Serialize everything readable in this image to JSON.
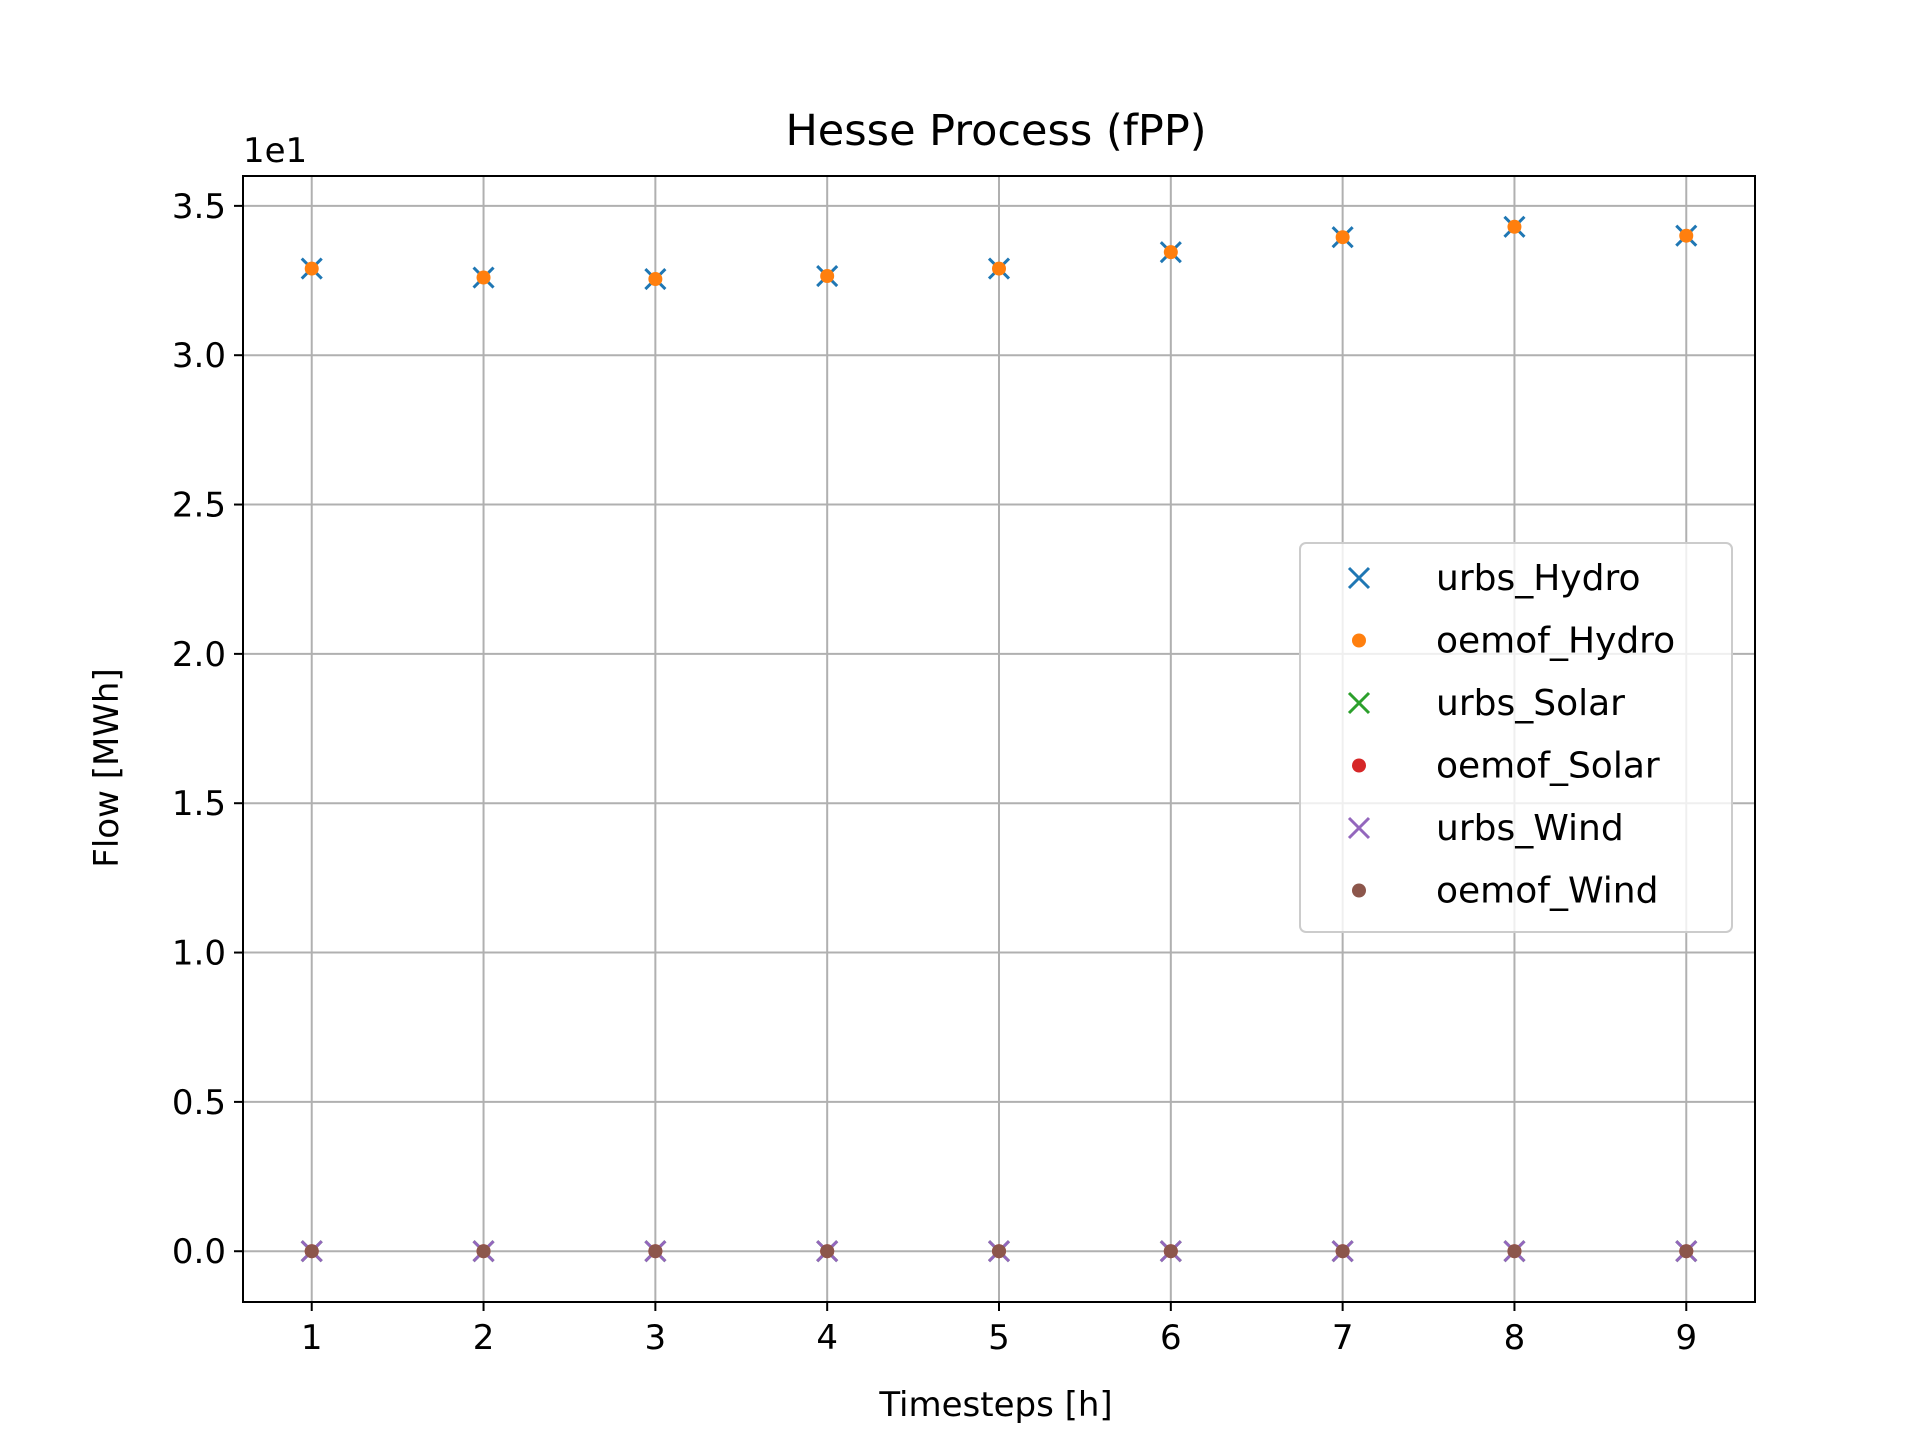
{
  "chart_data": {
    "type": "scatter",
    "title": "Hesse Process (fPP)",
    "xlabel": "Timesteps [h]",
    "ylabel": "Flow [MWh]",
    "y_offset_label": "1e1",
    "xlim": [
      0.6,
      9.4
    ],
    "ylim": [
      -0.17,
      3.6
    ],
    "x_ticks": [
      1,
      2,
      3,
      4,
      5,
      6,
      7,
      8,
      9
    ],
    "y_ticks": [
      0.0,
      0.5,
      1.0,
      1.5,
      2.0,
      2.5,
      3.0,
      3.5
    ],
    "y_tick_labels": [
      "0.0",
      "0.5",
      "1.0",
      "1.5",
      "2.0",
      "2.5",
      "3.0",
      "3.5"
    ],
    "grid": true,
    "legend_position": "center-right",
    "x": [
      1,
      2,
      3,
      4,
      5,
      6,
      7,
      8,
      9
    ],
    "series": [
      {
        "name": "urbs_Hydro",
        "marker": "x",
        "color": "#1f77b4",
        "values": [
          3.29,
          3.26,
          3.255,
          3.265,
          3.29,
          3.345,
          3.395,
          3.43,
          3.4
        ]
      },
      {
        "name": "oemof_Hydro",
        "marker": "dot",
        "color": "#ff7f0e",
        "values": [
          3.29,
          3.26,
          3.255,
          3.265,
          3.29,
          3.345,
          3.395,
          3.43,
          3.4
        ]
      },
      {
        "name": "urbs_Solar",
        "marker": "x",
        "color": "#2ca02c",
        "values": [
          0,
          0,
          0,
          0,
          0,
          0,
          0,
          0,
          0
        ]
      },
      {
        "name": "oemof_Solar",
        "marker": "dot",
        "color": "#d62728",
        "values": [
          0,
          0,
          0,
          0,
          0,
          0,
          0,
          0,
          0
        ]
      },
      {
        "name": "urbs_Wind",
        "marker": "x",
        "color": "#9467bd",
        "values": [
          0,
          0,
          0,
          0,
          0,
          0,
          0,
          0,
          0
        ]
      },
      {
        "name": "oemof_Wind",
        "marker": "dot",
        "color": "#8c564b",
        "values": [
          0,
          0,
          0,
          0,
          0,
          0,
          0,
          0,
          0
        ]
      }
    ]
  }
}
